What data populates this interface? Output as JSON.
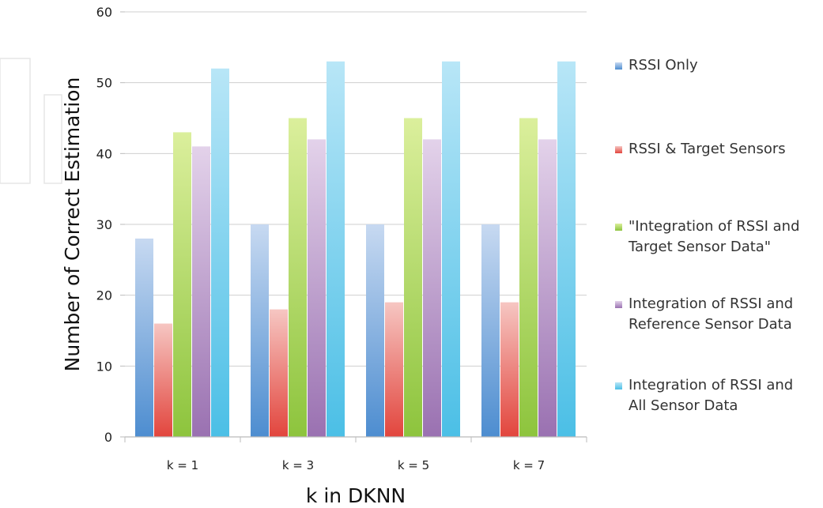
{
  "chart_data": {
    "type": "bar",
    "title": "",
    "xlabel": "k in DKNN",
    "ylabel": "Number of Correct Estimation",
    "categories": [
      "k = 1",
      "k = 3",
      "k = 5",
      "k = 7"
    ],
    "ylim": [
      0,
      60
    ],
    "yticks": [
      0,
      10,
      20,
      30,
      40,
      50,
      60
    ],
    "grid": true,
    "legend_position": "right",
    "series": [
      {
        "name": "RSSI Only",
        "values": [
          28,
          30,
          30,
          30
        ],
        "color_top": "#c7d9f1",
        "color_bottom": "#4d8dd0"
      },
      {
        "name": "RSSI & Target Sensors",
        "values": [
          16,
          18,
          19,
          19
        ],
        "color_top": "#f6c6c2",
        "color_bottom": "#e2453d"
      },
      {
        "name": "\"Integration of RSSI and Target Sensor Data\"",
        "legend_lines": [
          "\"Integration of RSSI and",
          "Target Sensor Data\""
        ],
        "values": [
          43,
          45,
          45,
          45
        ],
        "color_top": "#dbef9c",
        "color_bottom": "#8dc43d"
      },
      {
        "name": "Integration of RSSI and Reference Sensor Data",
        "legend_lines": [
          "Integration of RSSI and",
          "Reference Sensor Data"
        ],
        "values": [
          41,
          42,
          42,
          42
        ],
        "color_top": "#e3d2ea",
        "color_bottom": "#9a71b1"
      },
      {
        "name": "Integration of RSSI and All Sensor Data",
        "legend_lines": [
          "Integration of RSSI and",
          "All Sensor Data"
        ],
        "values": [
          52,
          53,
          53,
          53
        ],
        "color_top": "#b8e6f7",
        "color_bottom": "#4bbfe6"
      }
    ]
  }
}
